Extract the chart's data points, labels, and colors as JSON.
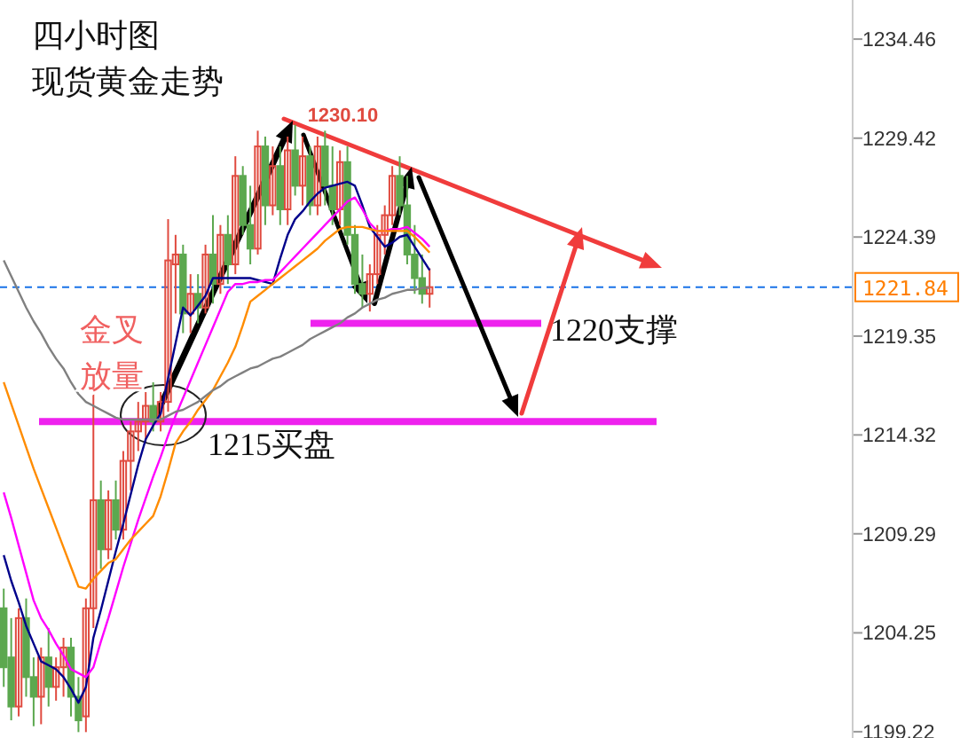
{
  "chart_data": {
    "type": "candlestick",
    "title": "四小时图",
    "subtitle": "现货黄金走势",
    "categories": [
      null,
      null,
      null,
      null,
      null,
      null,
      null,
      null,
      null,
      null,
      null,
      null,
      null,
      null,
      null,
      null,
      null,
      null,
      null,
      null,
      null,
      null,
      null,
      null,
      null,
      null,
      null,
      null,
      null,
      null,
      null,
      null,
      null,
      null,
      null,
      null,
      null,
      null,
      null,
      null,
      null,
      null,
      null,
      null,
      null,
      null,
      null,
      null,
      null,
      null,
      null,
      null,
      null,
      null,
      null,
      null,
      null,
      null,
      null,
      null,
      null,
      null,
      null,
      null,
      null,
      null,
      null,
      null,
      null,
      null,
      null,
      null,
      null,
      null,
      null,
      null,
      null,
      null,
      null,
      null,
      null,
      null,
      null,
      null,
      null,
      null,
      null,
      null,
      null,
      null,
      null,
      null,
      null,
      null,
      null,
      null,
      null,
      null,
      null,
      null,
      null,
      null,
      null,
      null,
      null,
      null,
      null,
      null,
      null,
      null,
      null,
      null,
      null,
      null
    ],
    "ohlc": [
      [
        1205.5,
        1206.5,
        1201.5,
        1202.5
      ],
      [
        1203,
        1205,
        1199.8,
        1200.5
      ],
      [
        1200.5,
        1205.5,
        1200,
        1205
      ],
      [
        1205,
        1206,
        1201,
        1202
      ],
      [
        1202,
        1203,
        1199.5,
        1201
      ],
      [
        1201,
        1203.5,
        1199.6,
        1203
      ],
      [
        1203,
        1204.5,
        1200.5,
        1201.5
      ],
      [
        1201.5,
        1203,
        1200.8,
        1202.5
      ],
      [
        1202.5,
        1204,
        1201,
        1203.5
      ],
      [
        1203.5,
        1204,
        1200,
        1201
      ],
      [
        1201,
        1202,
        1199.2,
        1199.8
      ],
      [
        1200,
        1206,
        1199.2,
        1205.5
      ],
      [
        1205.5,
        1216.4,
        1204.5,
        1211
      ],
      [
        1211,
        1212,
        1207.5,
        1208.5
      ],
      [
        1208.5,
        1211.5,
        1208,
        1211
      ],
      [
        1211,
        1212,
        1209,
        1209.5
      ],
      [
        1209.5,
        1213.5,
        1209,
        1213
      ],
      [
        1213,
        1215,
        1211.5,
        1214.5
      ],
      [
        1214.5,
        1216,
        1213.5,
        1215
      ],
      [
        1215,
        1216.5,
        1214,
        1215.8
      ],
      [
        1215.8,
        1217,
        1214.5,
        1215
      ],
      [
        1215,
        1216.5,
        1214.5,
        1216
      ],
      [
        1216,
        1225.3,
        1215.5,
        1223.2
      ],
      [
        1223,
        1224.5,
        1220.5,
        1223.5
      ],
      [
        1223.5,
        1224,
        1219.5,
        1220.5
      ],
      [
        1220.5,
        1222.5,
        1219.5,
        1221.5
      ],
      [
        1221.5,
        1222.5,
        1220,
        1220.8
      ],
      [
        1220.8,
        1224,
        1220.5,
        1223.5
      ],
      [
        1223.5,
        1225.5,
        1221,
        1222
      ],
      [
        1222,
        1225,
        1221.5,
        1224.5
      ],
      [
        1224.5,
        1225.5,
        1222,
        1223
      ],
      [
        1223,
        1228.5,
        1222.5,
        1227.5
      ],
      [
        1227.5,
        1228,
        1224.5,
        1225
      ],
      [
        1225,
        1227,
        1223,
        1223.8
      ],
      [
        1223.8,
        1229.8,
        1223.5,
        1229
      ],
      [
        1229,
        1229.5,
        1225,
        1226
      ],
      [
        1226,
        1229,
        1225.5,
        1228
      ],
      [
        1228,
        1229,
        1225,
        1225.8
      ],
      [
        1225.8,
        1229.5,
        1225,
        1228.8
      ],
      [
        1228.8,
        1230.1,
        1226.5,
        1227
      ],
      [
        1227,
        1229.5,
        1226,
        1228.5
      ],
      [
        1228.5,
        1229,
        1225.5,
        1226
      ],
      [
        1226,
        1229.5,
        1225.5,
        1229
      ],
      [
        1229,
        1229.8,
        1226,
        1227
      ],
      [
        1227,
        1229,
        1225,
        1225.8
      ],
      [
        1225.8,
        1228.8,
        1225,
        1228.2
      ],
      [
        1228.2,
        1229,
        1224,
        1224.5
      ],
      [
        1224.5,
        1225,
        1221.5,
        1222
      ],
      [
        1222,
        1223.5,
        1220.8,
        1221.5
      ],
      [
        1221.5,
        1223,
        1220.6,
        1222.5
      ],
      [
        1222.5,
        1225,
        1222,
        1224.5
      ],
      [
        1224.5,
        1226,
        1223.5,
        1225.5
      ],
      [
        1225.5,
        1228,
        1225,
        1227.5
      ],
      [
        1227.5,
        1228.5,
        1225.5,
        1226
      ],
      [
        1226,
        1227.5,
        1223,
        1223.5
      ],
      [
        1223.5,
        1225,
        1221.5,
        1222.3
      ],
      [
        1222.3,
        1223.5,
        1221,
        1221.5
      ],
      [
        1221.5,
        1222.8,
        1220.8,
        1221.84
      ],
      null,
      null,
      null,
      null,
      null,
      null,
      null,
      null,
      null,
      null,
      null,
      null,
      null,
      null,
      null,
      null,
      null,
      null,
      null,
      null,
      null,
      null,
      null,
      null,
      null,
      null,
      null,
      null,
      null,
      null,
      null,
      null,
      null,
      null,
      null,
      null,
      null,
      null,
      null,
      null,
      null,
      null,
      null,
      null,
      null,
      null,
      null,
      null,
      null,
      null,
      null,
      null,
      null,
      null,
      null,
      null
    ],
    "colors": [
      "#5ca84f",
      "#5ca84f",
      "#e04a3f",
      "#5ca84f",
      "#5ca84f",
      "#e04a3f",
      "#5ca84f",
      "#e04a3f",
      "#e04a3f",
      "#5ca84f",
      "#5ca84f",
      "#e04a3f",
      "#e04a3f",
      "#5ca84f",
      "#e04a3f",
      "#5ca84f",
      "#e04a3f",
      "#e04a3f",
      "#e04a3f",
      "#e04a3f",
      "#5ca84f",
      "#e04a3f",
      "#e04a3f",
      "#e04a3f",
      "#5ca84f",
      "#e04a3f",
      "#5ca84f",
      "#e04a3f",
      "#5ca84f",
      "#e04a3f",
      "#5ca84f",
      "#e04a3f",
      "#5ca84f",
      "#5ca84f",
      "#e04a3f",
      "#5ca84f",
      "#e04a3f",
      "#5ca84f",
      "#e04a3f",
      "#5ca84f",
      "#e04a3f",
      "#5ca84f",
      "#e04a3f",
      "#5ca84f",
      "#5ca84f",
      "#e04a3f",
      "#5ca84f",
      "#5ca84f",
      "#5ca84f",
      "#e04a3f",
      "#e04a3f",
      "#e04a3f",
      "#e04a3f",
      "#5ca84f",
      "#5ca84f",
      "#5ca84f",
      "#5ca84f",
      "#e04a3f",
      null,
      null,
      null,
      null,
      null,
      null,
      null,
      null,
      null,
      null,
      null,
      null,
      null,
      null,
      null,
      null,
      null,
      null,
      null,
      null,
      null,
      null,
      null,
      null,
      null,
      null,
      null,
      null,
      null,
      null,
      null,
      null,
      null,
      null,
      null,
      null,
      null,
      null,
      null,
      null,
      null,
      null,
      null,
      null,
      null,
      null,
      null,
      null,
      null,
      null,
      null,
      null,
      null,
      null,
      null,
      null
    ],
    "series": [
      {
        "type": "line",
        "color": "#00008b",
        "values": [
          1208.2,
          1206.9,
          1205.8,
          1204.6,
          1203.7,
          1202.8,
          1202.6,
          1202.4,
          1202.0,
          1201.4,
          1200.7,
          1201.5,
          1204,
          1205.4,
          1206.9,
          1208.4,
          1209.8,
          1211.3,
          1212.8,
          1214.1,
          1214.8,
          1215.4,
          1217.2,
          1219.0,
          1220.8,
          1220.4,
          1220.9,
          1221.4,
          1222.3,
          1222.3,
          1222.3,
          1222.3,
          1222.3,
          1222.3,
          1222.2,
          1222.1,
          1222,
          1223.3,
          1224.5,
          1225.3,
          1225.7,
          1226.2,
          1226.6,
          1226.9,
          1227,
          1227.1,
          1227.2,
          1227.0,
          1226,
          1224.9,
          1224.4,
          1223.9,
          1224.1,
          1224.4,
          1224.5,
          1223.9,
          1223.3,
          1222.7,
          null,
          null,
          null,
          null,
          null,
          null,
          null,
          null,
          null,
          null,
          null,
          null,
          null,
          null,
          null,
          null,
          null,
          null,
          null,
          null,
          null,
          null,
          null,
          null,
          null,
          null,
          null,
          null,
          null,
          null,
          null,
          null,
          null,
          null,
          null,
          null,
          null,
          null,
          null,
          null,
          null,
          null,
          null,
          null,
          null,
          null,
          null,
          null,
          null,
          null,
          null,
          null,
          null,
          null,
          null,
          null
        ]
      },
      {
        "type": "line",
        "color": "#ff00ff",
        "values": [
          1211.4,
          1210.1,
          1208.7,
          1207.3,
          1205.9,
          1205.0,
          1204.4,
          1203.7,
          1203.1,
          1202.4,
          1202.2,
          1202.0,
          1202.5,
          1203.8,
          1205.0,
          1206.3,
          1207.6,
          1208.8,
          1210.0,
          1211.1,
          1212.2,
          1213.2,
          1214.3,
          1215.3,
          1216.2,
          1217.1,
          1218.0,
          1218.9,
          1219.8,
          1220.7,
          1221.6,
          1222.0,
          1222.0,
          1222.1,
          1222.1,
          1222.2,
          1222.2,
          1222.6,
          1223.0,
          1223.4,
          1223.8,
          1224.2,
          1224.6,
          1225.0,
          1225.4,
          1225.8,
          1226.2,
          1226.4,
          1225.8,
          1225.1,
          1224.7,
          1224.7,
          1224.8,
          1224.8,
          1224.9,
          1224.6,
          1224.3,
          1223.9,
          null,
          null,
          null,
          null,
          null,
          null,
          null,
          null,
          null,
          null,
          null,
          null,
          null,
          null,
          null,
          null,
          null,
          null,
          null,
          null,
          null,
          null,
          null,
          null,
          null,
          null,
          null,
          null,
          null,
          null,
          null,
          null,
          null,
          null,
          null,
          null,
          null,
          null,
          null,
          null,
          null,
          null,
          null,
          null,
          null,
          null,
          null,
          null,
          null,
          null,
          null,
          null,
          null,
          null,
          null,
          null
        ]
      },
      {
        "type": "line",
        "color": "#ff8c00",
        "values": [
          1217,
          1215.9,
          1214.8,
          1213.7,
          1212.6,
          1211.6,
          1210.6,
          1209.6,
          1208.6,
          1207.6,
          1206.6,
          1206.5,
          1207.0,
          1207.4,
          1207.8,
          1208.0,
          1208.5,
          1209.0,
          1209.4,
          1209.8,
          1210.2,
          1211.2,
          1212.5,
          1213.9,
          1214.5,
          1215.0,
          1215.6,
          1216.1,
          1216.6,
          1217.3,
          1218.0,
          1218.8,
          1219.9,
          1221.1,
          1221.4,
          1221.7,
          1222.0,
          1222.3,
          1222.6,
          1222.9,
          1223.2,
          1223.5,
          1223.8,
          1224.2,
          1224.5,
          1224.8,
          1224.9,
          1224.9,
          1224.9,
          1224.8,
          1224.7,
          1224.7,
          1224.7,
          1224.7,
          1224.7,
          1224.4,
          1224.0,
          1223.6,
          null,
          null,
          null,
          null,
          null,
          null,
          null,
          null,
          null,
          null,
          null,
          null,
          null,
          null,
          null,
          null,
          null,
          null,
          null,
          null,
          null,
          null,
          null,
          null,
          null,
          null,
          null,
          null,
          null,
          null,
          null,
          null,
          null,
          null,
          null,
          null,
          null,
          null,
          null,
          null,
          null,
          null,
          null,
          null,
          null,
          null,
          null,
          null,
          null,
          null,
          null,
          null,
          null,
          null,
          null,
          null
        ]
      },
      {
        "type": "line",
        "color": "#808080",
        "values": [
          1223.2,
          1222.4,
          1221.6,
          1220.8,
          1220.1,
          1219.5,
          1218.8,
          1218.2,
          1217.7,
          1217.0,
          1216.4,
          1216.0,
          1215.8,
          1215.6,
          1215.4,
          1215.2,
          1215.1,
          1215.1,
          1215.1,
          1215.1,
          1215.1,
          1215.1,
          1215.3,
          1215.5,
          1215.6,
          1215.8,
          1216.0,
          1216.3,
          1216.6,
          1216.8,
          1217.1,
          1217.3,
          1217.5,
          1217.7,
          1217.8,
          1218.0,
          1218.2,
          1218.3,
          1218.5,
          1218.7,
          1218.9,
          1219.2,
          1219.4,
          1219.6,
          1219.8,
          1220.0,
          1220.3,
          1220.5,
          1220.8,
          1221.0,
          1221.2,
          1221.3,
          1221.5,
          1221.6,
          1221.7,
          1221.7,
          1221.8,
          1221.8,
          null,
          null,
          null,
          null,
          null,
          null,
          null,
          null,
          null,
          null,
          null,
          null,
          null,
          null,
          null,
          null,
          null,
          null,
          null,
          null,
          null,
          null,
          null,
          null,
          null,
          null,
          null,
          null,
          null,
          null,
          null,
          null,
          null,
          null,
          null,
          null,
          null,
          null,
          null,
          null,
          null,
          null,
          null,
          null,
          null,
          null,
          null,
          null,
          null,
          null,
          null,
          null,
          null,
          null,
          null,
          null
        ]
      }
    ],
    "ylim": [
      1198.9,
      1236.45
    ],
    "yticks": [
      1199.22,
      1204.25,
      1209.29,
      1214.32,
      1219.35,
      1224.39,
      1229.42,
      1234.46
    ],
    "tick_labels": "y",
    "ref_lines": [
      {
        "axis": "y",
        "value": 1221.84,
        "label": "1221.84",
        "color": "#1a73e8",
        "line_style": "dashed"
      },
      {
        "axis": "y",
        "value": 1215,
        "label": "1215买盘",
        "color": "#ee22ee",
        "line_style": "solid"
      },
      {
        "axis": "y",
        "value": 1220,
        "label": "1220支撑",
        "color": "#ee22ee",
        "line_style": "solid"
      }
    ],
    "annotations": [
      "1230.10",
      "金叉",
      "放量"
    ]
  }
}
